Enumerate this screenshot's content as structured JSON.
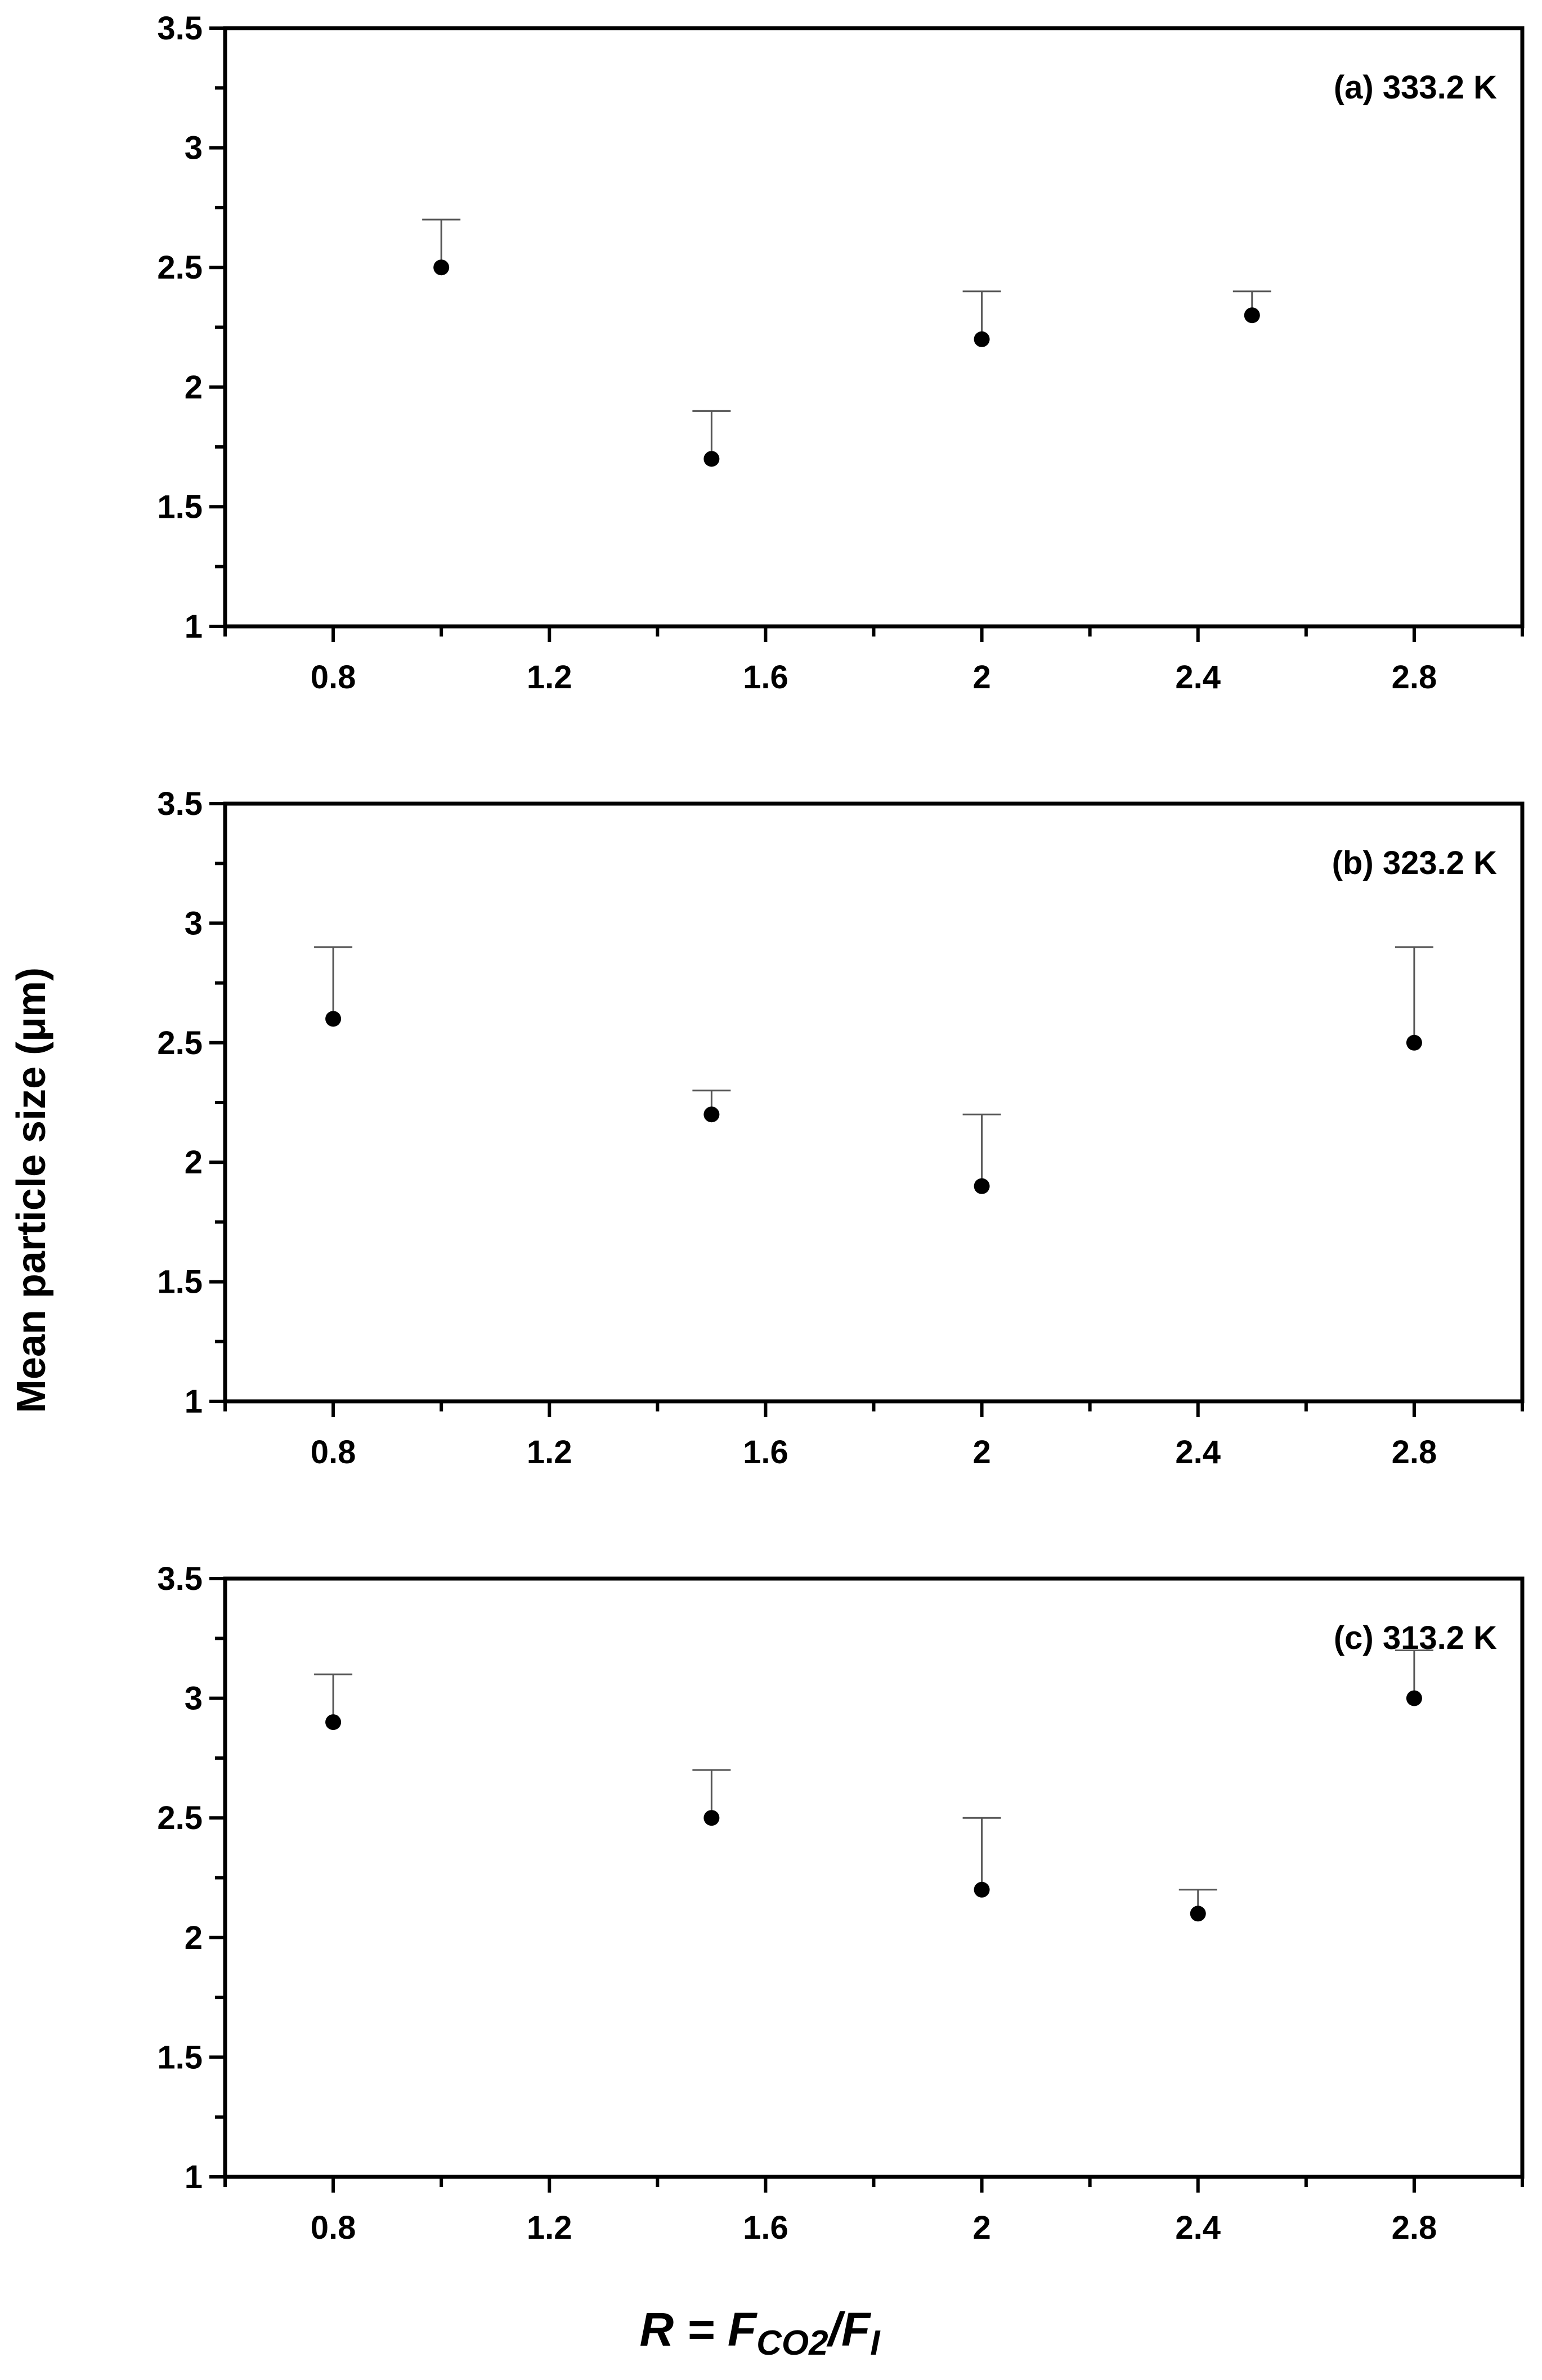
{
  "figure": {
    "ylabel": "Mean particle size (μm)",
    "xlabel": {
      "lead": "R = F",
      "sub1": "CO2",
      "mid": "/F",
      "sub2": "I"
    }
  },
  "chart_data": [
    {
      "type": "scatter",
      "panel_label": "(a) 333.2 K",
      "x": [
        1.0,
        1.5,
        2.0,
        2.5
      ],
      "y": [
        2.5,
        1.7,
        2.2,
        2.3
      ],
      "error_upper": [
        0.2,
        0.2,
        0.2,
        0.1
      ],
      "xlim": [
        0.6,
        3.0
      ],
      "ylim": [
        1,
        3.5
      ],
      "xticks": [
        0.8,
        1.2,
        1.6,
        2.0,
        2.4,
        2.8
      ],
      "xtick_labels": [
        "0.8",
        "1.2",
        "1.6",
        "2",
        "2.4",
        "2.8"
      ],
      "yticks": [
        1,
        1.5,
        2,
        2.5,
        3,
        3.5
      ],
      "ytick_labels": [
        "1",
        "1.5",
        "2",
        "2.5",
        "3",
        "3.5"
      ],
      "grid": false
    },
    {
      "type": "scatter",
      "panel_label": "(b) 323.2 K",
      "x": [
        0.8,
        1.5,
        2.0,
        2.8
      ],
      "y": [
        2.6,
        2.2,
        1.9,
        2.5
      ],
      "error_upper": [
        0.3,
        0.1,
        0.3,
        0.4
      ],
      "xlim": [
        0.6,
        3.0
      ],
      "ylim": [
        1,
        3.5
      ],
      "xticks": [
        0.8,
        1.2,
        1.6,
        2.0,
        2.4,
        2.8
      ],
      "xtick_labels": [
        "0.8",
        "1.2",
        "1.6",
        "2",
        "2.4",
        "2.8"
      ],
      "yticks": [
        1,
        1.5,
        2,
        2.5,
        3,
        3.5
      ],
      "ytick_labels": [
        "1",
        "1.5",
        "2",
        "2.5",
        "3",
        "3.5"
      ],
      "grid": false
    },
    {
      "type": "scatter",
      "panel_label": "(c) 313.2 K",
      "x": [
        0.8,
        1.5,
        2.0,
        2.4,
        2.8
      ],
      "y": [
        2.9,
        2.5,
        2.2,
        2.1,
        3.0
      ],
      "error_upper": [
        0.2,
        0.2,
        0.3,
        0.1,
        0.2
      ],
      "xlim": [
        0.6,
        3.0
      ],
      "ylim": [
        1,
        3.5
      ],
      "xticks": [
        0.8,
        1.2,
        1.6,
        2.0,
        2.4,
        2.8
      ],
      "xtick_labels": [
        "0.8",
        "1.2",
        "1.6",
        "2",
        "2.4",
        "2.8"
      ],
      "yticks": [
        1,
        1.5,
        2,
        2.5,
        3,
        3.5
      ],
      "ytick_labels": [
        "1",
        "1.5",
        "2",
        "2.5",
        "3",
        "3.5"
      ],
      "grid": false
    }
  ]
}
